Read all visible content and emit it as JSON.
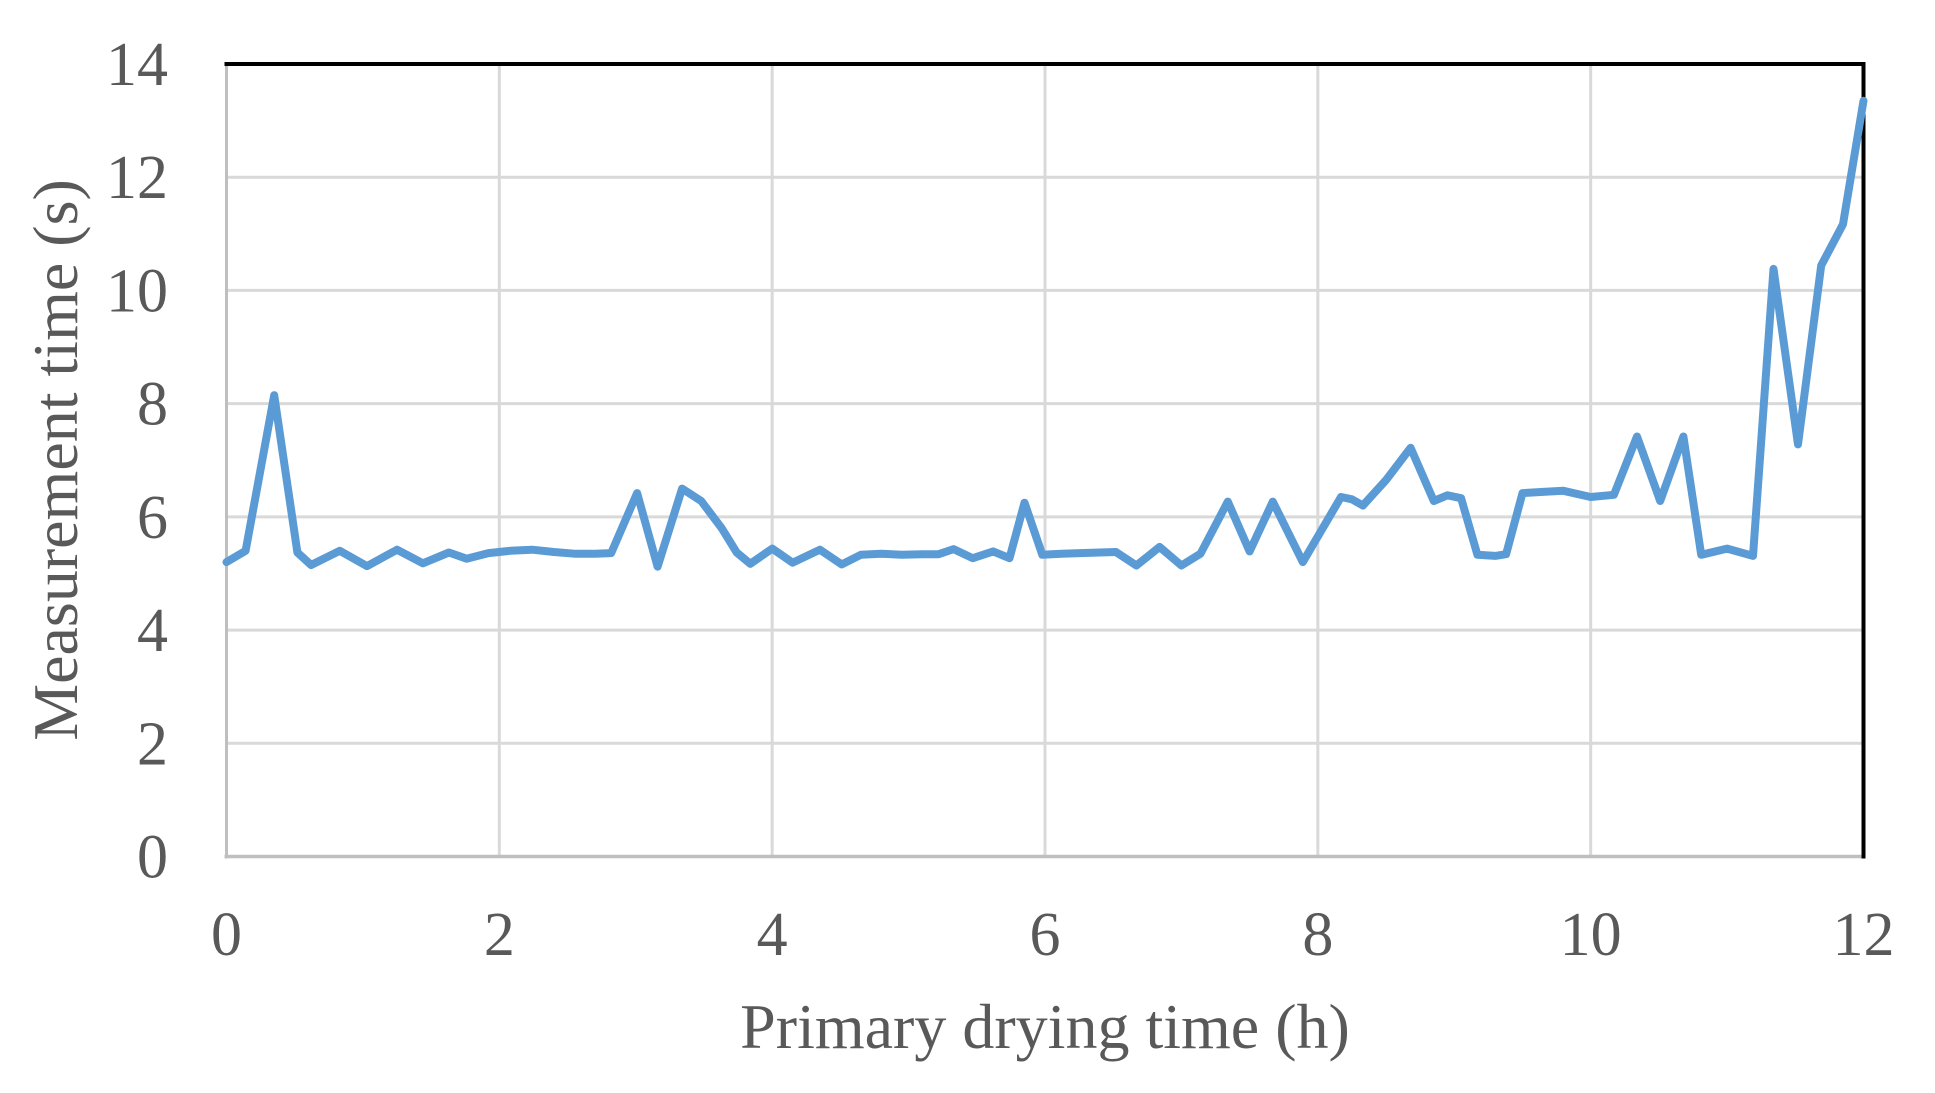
{
  "figure": {
    "background": "#ffffff"
  },
  "chart_data": {
    "type": "line",
    "title": "",
    "xlabel": "Primary drying time (h)",
    "ylabel": "Measurement time (s)",
    "xlim": [
      0,
      12
    ],
    "ylim": [
      0,
      14
    ],
    "x_ticks": [
      0,
      2,
      4,
      6,
      8,
      10,
      12
    ],
    "y_ticks": [
      0,
      2,
      4,
      6,
      8,
      10,
      12,
      14
    ],
    "grid": true,
    "legend_position": "none",
    "series": [
      {
        "name": "Measurement time",
        "color": "#5B9BD5",
        "points": [
          [
            0.0,
            5.2
          ],
          [
            0.14,
            5.4
          ],
          [
            0.35,
            8.15
          ],
          [
            0.52,
            5.37
          ],
          [
            0.62,
            5.15
          ],
          [
            0.83,
            5.4
          ],
          [
            1.03,
            5.13
          ],
          [
            1.25,
            5.42
          ],
          [
            1.44,
            5.18
          ],
          [
            1.63,
            5.37
          ],
          [
            1.76,
            5.26
          ],
          [
            1.92,
            5.36
          ],
          [
            2.08,
            5.4
          ],
          [
            2.24,
            5.42
          ],
          [
            2.4,
            5.38
          ],
          [
            2.55,
            5.35
          ],
          [
            2.7,
            5.35
          ],
          [
            2.82,
            5.36
          ],
          [
            3.01,
            6.42
          ],
          [
            3.16,
            5.12
          ],
          [
            3.34,
            6.5
          ],
          [
            3.48,
            6.28
          ],
          [
            3.63,
            5.8
          ],
          [
            3.74,
            5.37
          ],
          [
            3.84,
            5.17
          ],
          [
            4.0,
            5.44
          ],
          [
            4.15,
            5.19
          ],
          [
            4.35,
            5.42
          ],
          [
            4.51,
            5.16
          ],
          [
            4.65,
            5.33
          ],
          [
            4.8,
            5.35
          ],
          [
            4.95,
            5.33
          ],
          [
            5.1,
            5.34
          ],
          [
            5.22,
            5.34
          ],
          [
            5.33,
            5.43
          ],
          [
            5.47,
            5.27
          ],
          [
            5.62,
            5.39
          ],
          [
            5.74,
            5.27
          ],
          [
            5.85,
            6.25
          ],
          [
            5.98,
            5.33
          ],
          [
            6.12,
            5.35
          ],
          [
            6.26,
            5.36
          ],
          [
            6.4,
            5.37
          ],
          [
            6.52,
            5.38
          ],
          [
            6.67,
            5.14
          ],
          [
            6.84,
            5.47
          ],
          [
            7.0,
            5.14
          ],
          [
            7.14,
            5.35
          ],
          [
            7.34,
            6.27
          ],
          [
            7.5,
            5.39
          ],
          [
            7.67,
            6.27
          ],
          [
            7.89,
            5.2
          ],
          [
            8.17,
            6.35
          ],
          [
            8.25,
            6.31
          ],
          [
            8.33,
            6.2
          ],
          [
            8.5,
            6.65
          ],
          [
            8.68,
            7.22
          ],
          [
            8.85,
            6.28
          ],
          [
            8.95,
            6.38
          ],
          [
            9.05,
            6.33
          ],
          [
            9.17,
            5.33
          ],
          [
            9.3,
            5.31
          ],
          [
            9.38,
            5.34
          ],
          [
            9.5,
            6.42
          ],
          [
            9.65,
            6.44
          ],
          [
            9.8,
            6.46
          ],
          [
            10.0,
            6.35
          ],
          [
            10.17,
            6.39
          ],
          [
            10.34,
            7.42
          ],
          [
            10.51,
            6.28
          ],
          [
            10.68,
            7.42
          ],
          [
            10.81,
            5.33
          ],
          [
            11.0,
            5.44
          ],
          [
            11.19,
            5.31
          ],
          [
            11.34,
            10.38
          ],
          [
            11.52,
            7.28
          ],
          [
            11.69,
            10.44
          ],
          [
            11.85,
            11.17
          ],
          [
            12.0,
            13.35
          ]
        ]
      }
    ]
  },
  "style": {
    "grid_color": "#D9D9D9",
    "axis_color": "#BFBFBF",
    "border_color": "#000000",
    "tick_label_color": "#595959",
    "axis_title_color": "#595959",
    "line_color": "#5B9BD5"
  }
}
